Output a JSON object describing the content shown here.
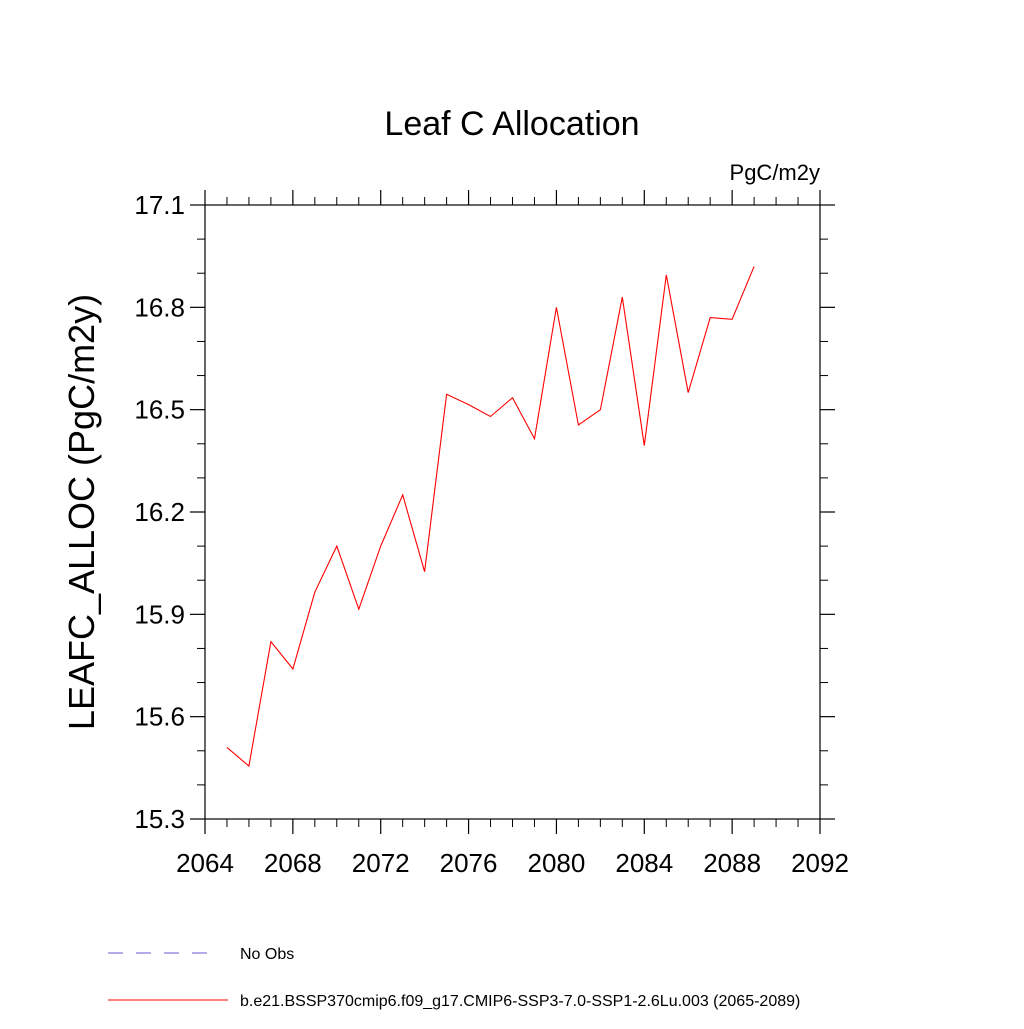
{
  "chart_data": {
    "type": "line",
    "title": "Leaf C Allocation",
    "units_label": "PgC/m2y",
    "ylabel": "LEAFC_ALLOC  (PgC/m2y)",
    "xlabel": "",
    "xlim": [
      2064,
      2092
    ],
    "ylim": [
      15.3,
      17.1
    ],
    "x_ticks": [
      2064,
      2068,
      2072,
      2076,
      2080,
      2084,
      2088,
      2092
    ],
    "x_tick_labels": [
      "2064",
      "2068",
      "2072",
      "2076",
      "2080",
      "2084",
      "2088",
      "2092"
    ],
    "y_ticks": [
      15.3,
      15.6,
      15.9,
      16.2,
      16.5,
      16.8,
      17.1
    ],
    "y_tick_labels": [
      "15.3",
      "15.6",
      "15.9",
      "16.2",
      "16.5",
      "16.8",
      "17.1"
    ],
    "x_minor_step": 1,
    "y_minor_step": 0.1,
    "grid": false,
    "legend_position": "bottom-left",
    "series": [
      {
        "name": "b.e21.BSSP370cmip6.f09_g17.CMIP6-SSP3-7.0-SSP1-2.6Lu.003 (2065-2089)",
        "color": "#ff0000",
        "dash": "solid",
        "x": [
          2065,
          2066,
          2067,
          2068,
          2069,
          2070,
          2071,
          2072,
          2073,
          2074,
          2075,
          2076,
          2077,
          2078,
          2079,
          2080,
          2081,
          2082,
          2083,
          2084,
          2085,
          2086,
          2087,
          2088,
          2089
        ],
        "y": [
          15.51,
          15.455,
          15.82,
          15.74,
          15.965,
          16.1,
          15.915,
          16.1,
          16.25,
          16.025,
          16.545,
          16.515,
          16.48,
          16.535,
          16.415,
          16.8,
          16.455,
          16.5,
          16.83,
          16.395,
          16.895,
          16.55,
          16.77,
          16.765,
          16.92
        ]
      }
    ],
    "legend": [
      {
        "label": "No Obs",
        "color": "#6a5acd",
        "dash": "dashed"
      },
      {
        "label": "b.e21.BSSP370cmip6.f09_g17.CMIP6-SSP3-7.0-SSP1-2.6Lu.003 (2065-2089)",
        "color": "#ff0000",
        "dash": "solid"
      }
    ]
  }
}
